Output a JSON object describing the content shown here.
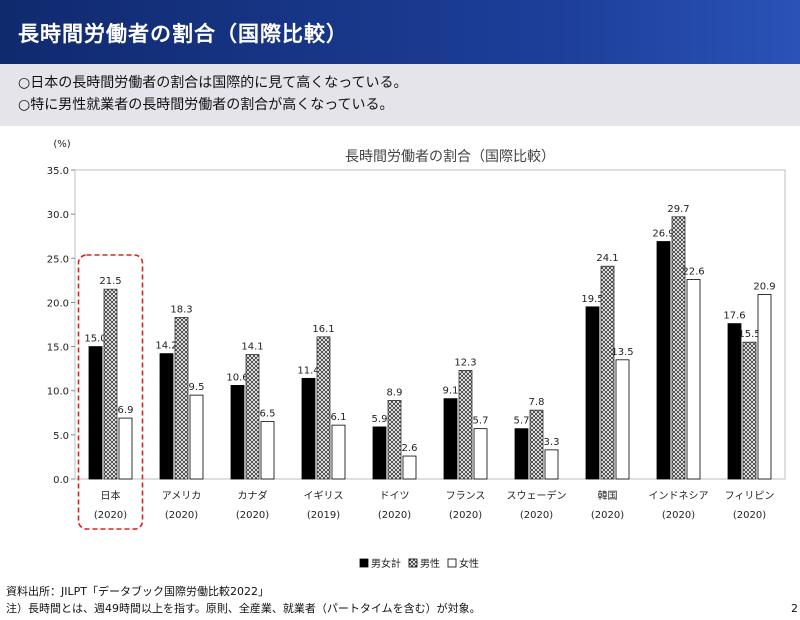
{
  "slide": {
    "title": "長時間労働者の割合（国際比較）",
    "bullets": [
      "○日本の長時間労働者の割合は国際的に見て高くなっている。",
      "○特に男性就業者の長時間労働者の割合が高くなっている。"
    ],
    "source": "資料出所：JILPT「データブック国際労働比較2022」",
    "note": "注）長時間とは、週49時間以上を指す。原則、全産業、就業者（パートタイムを含む）が対象。",
    "page_number": "2"
  },
  "chart_data": {
    "type": "bar",
    "title": "長時間労働者の割合（国際比較）",
    "ylabel": "(%)",
    "ylim": [
      0,
      35
    ],
    "yticks": [
      "0.0",
      "5.0",
      "10.0",
      "15.0",
      "20.0",
      "25.0",
      "30.0",
      "35.0"
    ],
    "categories": [
      "日本",
      "アメリカ",
      "カナダ",
      "イギリス",
      "ドイツ",
      "フランス",
      "スウェーデン",
      "韓国",
      "インドネシア",
      "フィリピン"
    ],
    "years": [
      "(2020)",
      "(2020)",
      "(2020)",
      "(2019)",
      "(2020)",
      "(2020)",
      "(2020)",
      "(2020)",
      "(2020)",
      "(2020)"
    ],
    "series": [
      {
        "name": "男女計",
        "values": [
          15.0,
          14.2,
          10.6,
          11.4,
          5.9,
          9.1,
          5.7,
          19.5,
          26.9,
          17.6
        ]
      },
      {
        "name": "男性",
        "values": [
          21.5,
          18.3,
          14.1,
          16.1,
          8.9,
          12.3,
          7.8,
          24.1,
          29.7,
          15.5
        ]
      },
      {
        "name": "女性",
        "values": [
          6.9,
          9.5,
          6.5,
          6.1,
          2.6,
          5.7,
          3.3,
          13.5,
          22.6,
          20.9
        ]
      }
    ],
    "legend_position": "bottom",
    "highlight_category": "日本"
  }
}
